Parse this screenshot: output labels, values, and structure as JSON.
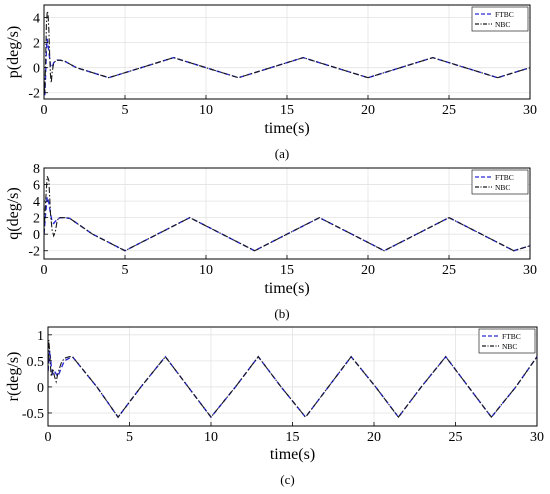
{
  "chart_data": [
    {
      "type": "line",
      "caption": "(a)",
      "xlabel": "time(s)",
      "ylabel": "p(deg/s)",
      "xlim": [
        0,
        30
      ],
      "ylim": [
        -2.5,
        5
      ],
      "xticks": [
        0,
        5,
        10,
        15,
        20,
        25,
        30
      ],
      "yticks": [
        -2,
        0,
        2,
        4
      ],
      "grid": true,
      "legend_position": "top-right",
      "series": [
        {
          "name": "FTBC",
          "style": "dashed",
          "color": "#2a2ad8",
          "x": [
            0,
            0.05,
            0.1,
            0.15,
            0.2,
            0.3,
            0.4,
            0.5,
            0.6,
            0.8,
            1.0,
            1.3,
            2,
            4,
            6,
            8,
            10,
            12,
            14,
            16,
            18,
            20,
            22,
            24,
            26,
            28,
            30
          ],
          "y": [
            -1.5,
            -2.2,
            -0.5,
            1.5,
            2.3,
            1.3,
            0.2,
            0.0,
            0.4,
            0.6,
            0.6,
            0.5,
            0.0,
            -0.8,
            0.0,
            0.8,
            0.0,
            -0.8,
            0.0,
            0.8,
            0.0,
            -0.8,
            0.0,
            0.8,
            0.0,
            -0.8,
            0.0
          ]
        },
        {
          "name": "NBC",
          "style": "dashdot",
          "color": "#1a1a1a",
          "x": [
            0,
            0.05,
            0.1,
            0.15,
            0.2,
            0.25,
            0.3,
            0.35,
            0.4,
            0.45,
            0.5,
            0.6,
            0.8,
            1.0,
            1.3,
            2,
            4,
            6,
            8,
            10,
            12,
            14,
            16,
            18,
            20,
            22,
            24,
            26,
            28,
            30
          ],
          "y": [
            -1.5,
            -2.0,
            0.5,
            3.5,
            4.5,
            4.3,
            3.0,
            1.0,
            -0.6,
            -1.2,
            -0.4,
            0.4,
            0.6,
            0.6,
            0.5,
            0.0,
            -0.8,
            0.0,
            0.8,
            0.0,
            -0.8,
            0.0,
            0.8,
            0.0,
            -0.8,
            0.0,
            0.8,
            0.0,
            -0.8,
            0.0
          ]
        }
      ]
    },
    {
      "type": "line",
      "caption": "(b)",
      "xlabel": "time(s)",
      "ylabel": "q(deg/s)",
      "xlim": [
        0,
        30
      ],
      "ylim": [
        -3,
        8
      ],
      "xticks": [
        0,
        5,
        10,
        15,
        20,
        25,
        30
      ],
      "yticks": [
        -2,
        0,
        2,
        4,
        6,
        8
      ],
      "grid": true,
      "legend_position": "top-right",
      "series": [
        {
          "name": "FTBC",
          "style": "dashed",
          "color": "#2a2ad8",
          "x": [
            0,
            0.1,
            0.2,
            0.3,
            0.4,
            0.5,
            0.6,
            0.8,
            1.0,
            1.3,
            1.6,
            3,
            5,
            7,
            9,
            11,
            13,
            15,
            17,
            19,
            21,
            23,
            25,
            27,
            29,
            30
          ],
          "y": [
            0,
            2.5,
            4.5,
            3.8,
            2.5,
            1.5,
            1.3,
            1.8,
            2.0,
            2.0,
            1.9,
            0.0,
            -2.0,
            0.0,
            2.0,
            0.0,
            -2.0,
            0.0,
            2.0,
            0.0,
            -2.0,
            0.0,
            2.0,
            0.0,
            -2.0,
            -1.4
          ]
        },
        {
          "name": "NBC",
          "style": "dashdot",
          "color": "#1a1a1a",
          "x": [
            0,
            0.1,
            0.2,
            0.3,
            0.35,
            0.4,
            0.5,
            0.6,
            0.7,
            0.8,
            0.9,
            1.0,
            1.3,
            1.6,
            3,
            5,
            7,
            9,
            11,
            13,
            15,
            17,
            19,
            21,
            23,
            25,
            27,
            29,
            30
          ],
          "y": [
            0,
            4.0,
            7.0,
            6.5,
            4.5,
            2.5,
            0.5,
            -0.2,
            0.3,
            1.5,
            2.0,
            2.0,
            2.0,
            1.9,
            0.0,
            -2.0,
            0.0,
            2.0,
            0.0,
            -2.0,
            0.0,
            2.0,
            0.0,
            -2.0,
            0.0,
            2.0,
            0.0,
            -2.0,
            -1.4
          ]
        }
      ]
    },
    {
      "type": "line",
      "caption": "(c)",
      "xlabel": "time(s)",
      "ylabel": "r(deg/s)",
      "xlim": [
        0,
        30
      ],
      "ylim": [
        -0.75,
        1.15
      ],
      "xticks": [
        0,
        5,
        10,
        15,
        20,
        25,
        30
      ],
      "yticks": [
        -0.5,
        0,
        0.5,
        1
      ],
      "ytick_labels": [
        "-0.5",
        "0",
        "0.5",
        "1"
      ],
      "grid": true,
      "legend_position": "top-right",
      "series": [
        {
          "name": "FTBC",
          "style": "dashed",
          "color": "#2a2ad8",
          "x": [
            0,
            0.1,
            0.2,
            0.3,
            0.4,
            0.6,
            0.8,
            1.0,
            1.3,
            1.5,
            3,
            4.3,
            5.7,
            7.2,
            8.6,
            10.0,
            11.5,
            12.9,
            14.3,
            15.8,
            17.2,
            18.6,
            20.1,
            21.5,
            22.9,
            24.4,
            25.8,
            27.2,
            28.7,
            30
          ],
          "y": [
            0.3,
            0.7,
            0.4,
            0.25,
            0.3,
            0.2,
            0.35,
            0.5,
            0.55,
            0.58,
            0.0,
            -0.58,
            0.0,
            0.58,
            0.0,
            -0.58,
            0.0,
            0.58,
            0.0,
            -0.58,
            0.0,
            0.58,
            0.0,
            -0.58,
            0.0,
            0.58,
            0.0,
            -0.58,
            0.0,
            0.58
          ]
        },
        {
          "name": "NBC",
          "style": "dashdot",
          "color": "#1a1a1a",
          "x": [
            0,
            0.05,
            0.1,
            0.15,
            0.2,
            0.3,
            0.4,
            0.5,
            0.6,
            0.8,
            1.0,
            1.3,
            1.5,
            3,
            4.3,
            5.7,
            7.2,
            8.6,
            10.0,
            11.5,
            12.9,
            14.3,
            15.8,
            17.2,
            18.6,
            20.1,
            21.5,
            22.9,
            24.4,
            25.8,
            27.2,
            28.7,
            30
          ],
          "y": [
            0.3,
            0.9,
            0.7,
            0.4,
            0.2,
            0.35,
            0.2,
            0.1,
            0.25,
            0.45,
            0.55,
            0.58,
            0.58,
            0.0,
            -0.58,
            0.0,
            0.58,
            0.0,
            -0.58,
            0.0,
            0.58,
            0.0,
            -0.58,
            0.0,
            0.58,
            0.0,
            -0.58,
            0.0,
            0.58,
            0.0,
            -0.58,
            0.0,
            0.58
          ]
        }
      ]
    }
  ]
}
